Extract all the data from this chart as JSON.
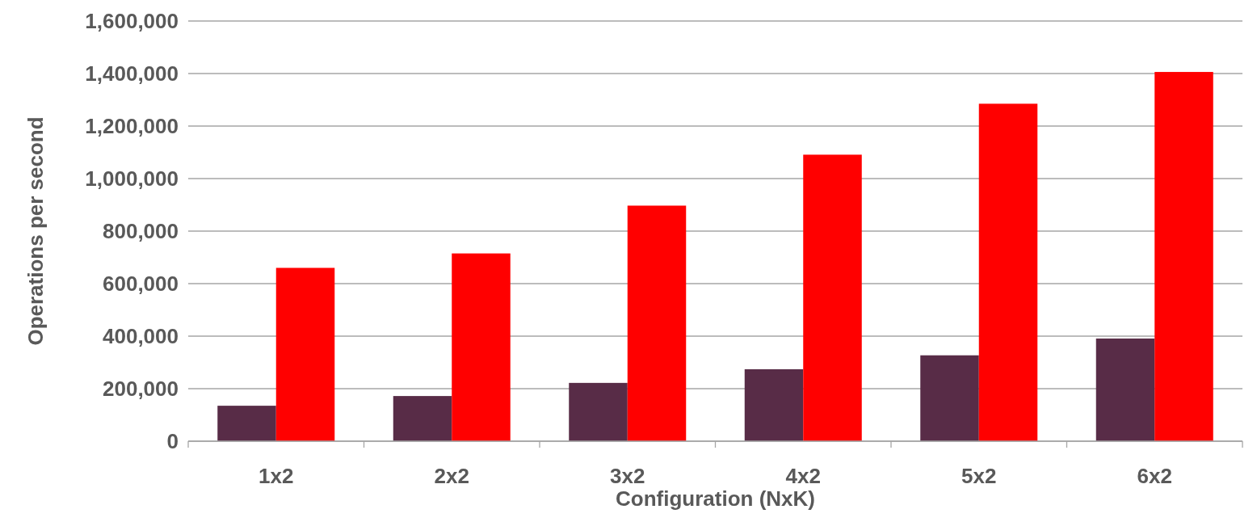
{
  "chart_data": {
    "type": "bar",
    "xlabel": "Configuration (NxK)",
    "ylabel": "Operations per second",
    "categories": [
      "1x2",
      "2x2",
      "3x2",
      "4x2",
      "5x2",
      "6x2"
    ],
    "series": [
      {
        "color": "#582c47",
        "values": [
          135000,
          172000,
          222000,
          274000,
          327000,
          391000
        ]
      },
      {
        "color": "#ff0000",
        "values": [
          660000,
          715000,
          897000,
          1091000,
          1285000,
          1406000
        ]
      }
    ],
    "ylim": [
      0,
      1600000
    ],
    "yticks": [
      {
        "value": 0,
        "label": "0"
      },
      {
        "value": 200000,
        "label": "200,000"
      },
      {
        "value": 400000,
        "label": "400,000"
      },
      {
        "value": 600000,
        "label": "600,000"
      },
      {
        "value": 800000,
        "label": "800,000"
      },
      {
        "value": 1000000,
        "label": "1,000,000"
      },
      {
        "value": 1200000,
        "label": "1,200,000"
      },
      {
        "value": 1400000,
        "label": "1,400,000"
      },
      {
        "value": 1600000,
        "label": "1,600,000"
      }
    ],
    "grid": "y"
  }
}
